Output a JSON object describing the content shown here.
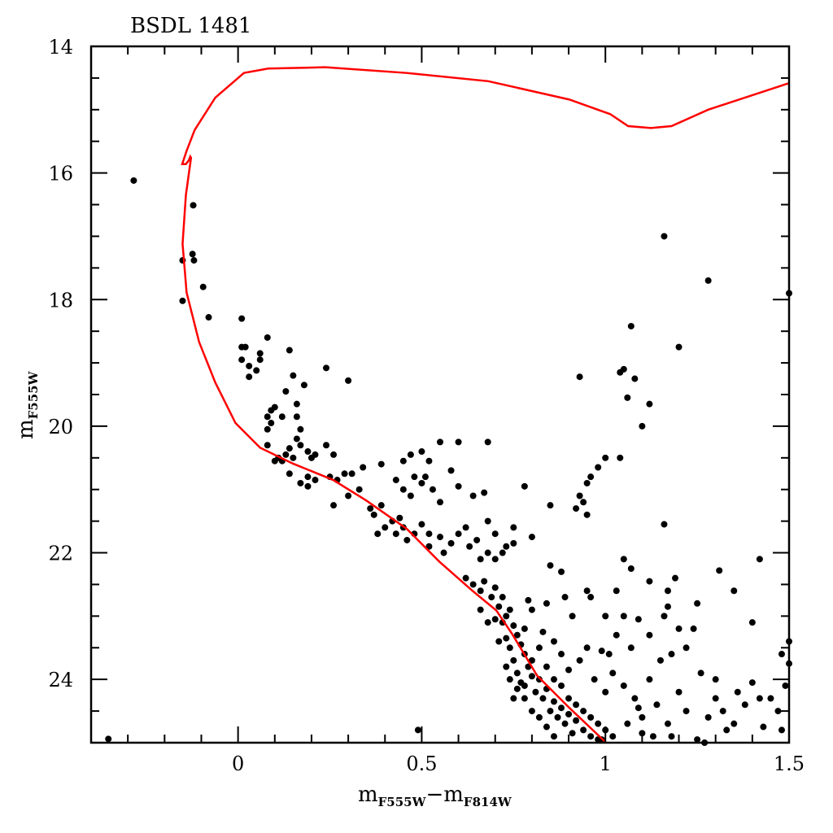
{
  "chart_data": {
    "type": "scatter",
    "title": "BSDL 1481",
    "xlabel": {
      "main": "m",
      "sub1": "F555W",
      "dash": "−",
      "main2": "m",
      "sub2": "F814W"
    },
    "ylabel": {
      "main": "m",
      "sub": "F555W"
    },
    "xlim": [
      -0.4,
      1.5
    ],
    "ylim": [
      25,
      14
    ],
    "y_inverted": true,
    "x_ticks": [
      0,
      0.5,
      1,
      1.5
    ],
    "x_tick_labels": [
      "0",
      "0.5",
      "1",
      "1.5"
    ],
    "y_ticks": [
      14,
      16,
      18,
      20,
      22,
      24
    ],
    "y_tick_labels": [
      "14",
      "16",
      "18",
      "20",
      "22",
      "24"
    ],
    "grid": false,
    "colors": {
      "points": "#000000",
      "isochrone": "#ff0000"
    },
    "isochrone": [
      [
        1.5,
        14.58
      ],
      [
        1.28,
        15.0
      ],
      [
        1.18,
        15.26
      ],
      [
        1.124,
        15.29
      ],
      [
        1.062,
        15.26
      ],
      [
        1.013,
        15.07
      ],
      [
        0.902,
        14.84
      ],
      [
        0.681,
        14.55
      ],
      [
        0.459,
        14.42
      ],
      [
        0.237,
        14.33
      ],
      [
        0.082,
        14.35
      ],
      [
        0.016,
        14.42
      ],
      [
        -0.062,
        14.81
      ],
      [
        -0.118,
        15.32
      ],
      [
        -0.14,
        15.65
      ],
      [
        -0.152,
        15.86
      ],
      [
        -0.142,
        15.86
      ],
      [
        -0.134,
        15.8
      ],
      [
        -0.13,
        15.74
      ],
      [
        -0.128,
        15.76
      ],
      [
        -0.142,
        16.35
      ],
      [
        -0.151,
        17.12
      ],
      [
        -0.14,
        17.89
      ],
      [
        -0.106,
        18.67
      ],
      [
        -0.062,
        19.31
      ],
      [
        -0.007,
        19.95
      ],
      [
        0.06,
        20.34
      ],
      [
        0.149,
        20.59
      ],
      [
        0.259,
        20.85
      ],
      [
        0.348,
        21.17
      ],
      [
        0.459,
        21.62
      ],
      [
        0.548,
        22.14
      ],
      [
        0.636,
        22.59
      ],
      [
        0.703,
        22.91
      ],
      [
        0.747,
        23.29
      ],
      [
        0.814,
        23.94
      ],
      [
        0.902,
        24.45
      ],
      [
        1.002,
        25.0
      ]
    ],
    "points": [
      [
        -0.284,
        16.12
      ],
      [
        -0.353,
        24.94
      ],
      [
        -0.151,
        17.38
      ],
      [
        -0.151,
        18.02
      ],
      [
        -0.124,
        17.28
      ],
      [
        -0.12,
        17.38
      ],
      [
        -0.122,
        16.51
      ],
      [
        -0.095,
        17.8
      ],
      [
        -0.08,
        18.28
      ],
      [
        0.01,
        18.3
      ],
      [
        0.01,
        18.75
      ],
      [
        0.02,
        18.75
      ],
      [
        0.01,
        18.95
      ],
      [
        0.03,
        19.05
      ],
      [
        0.05,
        19.12
      ],
      [
        0.03,
        19.22
      ],
      [
        0.06,
        18.95
      ],
      [
        0.06,
        18.85
      ],
      [
        0.08,
        18.6
      ],
      [
        0.14,
        18.8
      ],
      [
        0.15,
        19.2
      ],
      [
        0.18,
        19.35
      ],
      [
        0.24,
        19.08
      ],
      [
        0.3,
        19.28
      ],
      [
        0.13,
        19.45
      ],
      [
        0.1,
        19.7
      ],
      [
        0.09,
        19.75
      ],
      [
        0.08,
        19.85
      ],
      [
        0.09,
        19.95
      ],
      [
        0.12,
        19.85
      ],
      [
        0.16,
        19.65
      ],
      [
        0.16,
        19.85
      ],
      [
        0.17,
        20.05
      ],
      [
        0.08,
        20.05
      ],
      [
        0.08,
        20.3
      ],
      [
        0.11,
        20.5
      ],
      [
        0.13,
        20.45
      ],
      [
        0.15,
        20.5
      ],
      [
        0.17,
        20.3
      ],
      [
        0.16,
        20.2
      ],
      [
        0.14,
        20.35
      ],
      [
        0.19,
        20.4
      ],
      [
        0.21,
        20.45
      ],
      [
        0.2,
        20.5
      ],
      [
        0.24,
        20.3
      ],
      [
        0.26,
        20.45
      ],
      [
        0.19,
        20.8
      ],
      [
        0.17,
        20.9
      ],
      [
        0.19,
        20.95
      ],
      [
        0.21,
        20.85
      ],
      [
        0.14,
        20.75
      ],
      [
        0.12,
        20.55
      ],
      [
        0.1,
        20.55
      ],
      [
        0.25,
        20.8
      ],
      [
        0.27,
        20.85
      ],
      [
        0.29,
        20.75
      ],
      [
        0.31,
        20.75
      ],
      [
        0.34,
        20.65
      ],
      [
        0.26,
        21.25
      ],
      [
        0.3,
        21.1
      ],
      [
        0.33,
        21.0
      ],
      [
        0.39,
        20.6
      ],
      [
        0.45,
        20.55
      ],
      [
        0.47,
        20.45
      ],
      [
        0.5,
        20.4
      ],
      [
        0.52,
        20.55
      ],
      [
        0.55,
        20.25
      ],
      [
        0.6,
        20.25
      ],
      [
        0.68,
        20.25
      ],
      [
        0.58,
        20.7
      ],
      [
        0.6,
        20.95
      ],
      [
        0.51,
        20.8
      ],
      [
        0.48,
        20.8
      ],
      [
        0.43,
        20.85
      ],
      [
        0.45,
        21.0
      ],
      [
        0.47,
        21.1
      ],
      [
        0.5,
        20.9
      ],
      [
        0.53,
        21.0
      ],
      [
        0.55,
        21.2
      ],
      [
        0.64,
        21.1
      ],
      [
        0.67,
        21.05
      ],
      [
        0.68,
        21.5
      ],
      [
        0.7,
        21.7
      ],
      [
        0.75,
        21.6
      ],
      [
        0.78,
        20.95
      ],
      [
        0.36,
        21.3
      ],
      [
        0.37,
        21.4
      ],
      [
        0.38,
        21.7
      ],
      [
        0.4,
        21.6
      ],
      [
        0.42,
        21.5
      ],
      [
        0.43,
        21.7
      ],
      [
        0.45,
        21.6
      ],
      [
        0.46,
        21.8
      ],
      [
        0.48,
        21.7
      ],
      [
        0.5,
        21.55
      ],
      [
        0.52,
        21.7
      ],
      [
        0.52,
        21.9
      ],
      [
        0.55,
        21.75
      ],
      [
        0.56,
        22.0
      ],
      [
        0.58,
        21.85
      ],
      [
        0.6,
        21.7
      ],
      [
        0.62,
        21.6
      ],
      [
        0.63,
        21.9
      ],
      [
        0.65,
        21.8
      ],
      [
        0.66,
        22.1
      ],
      [
        0.68,
        22.0
      ],
      [
        0.7,
        22.1
      ],
      [
        0.72,
        22.0
      ],
      [
        0.73,
        21.9
      ],
      [
        0.75,
        21.85
      ],
      [
        0.8,
        21.75
      ],
      [
        0.85,
        22.2
      ],
      [
        0.44,
        21.45
      ],
      [
        0.39,
        21.25
      ],
      [
        1.16,
        17.0
      ],
      [
        1.28,
        17.7
      ],
      [
        1.5,
        17.9
      ],
      [
        1.07,
        18.42
      ],
      [
        1.2,
        18.75
      ],
      [
        0.93,
        19.22
      ],
      [
        1.04,
        19.15
      ],
      [
        1.05,
        19.1
      ],
      [
        1.08,
        19.25
      ],
      [
        1.12,
        19.65
      ],
      [
        1.1,
        20.0
      ],
      [
        1.06,
        19.55
      ],
      [
        1.04,
        20.5
      ],
      [
        1.0,
        20.5
      ],
      [
        0.98,
        20.65
      ],
      [
        0.96,
        20.8
      ],
      [
        0.95,
        20.9
      ],
      [
        0.93,
        21.1
      ],
      [
        0.94,
        21.2
      ],
      [
        0.92,
        21.3
      ],
      [
        0.95,
        21.4
      ],
      [
        0.85,
        21.25
      ],
      [
        1.16,
        21.55
      ],
      [
        1.05,
        22.1
      ],
      [
        1.07,
        22.25
      ],
      [
        1.31,
        22.28
      ],
      [
        1.42,
        22.1
      ],
      [
        1.35,
        22.6
      ],
      [
        1.12,
        22.45
      ],
      [
        1.19,
        22.4
      ],
      [
        1.17,
        22.6
      ],
      [
        1.4,
        23.1
      ],
      [
        1.48,
        23.6
      ],
      [
        1.5,
        23.4
      ],
      [
        1.5,
        23.75
      ],
      [
        0.62,
        22.4
      ],
      [
        0.64,
        22.5
      ],
      [
        0.66,
        22.6
      ],
      [
        0.67,
        22.45
      ],
      [
        0.69,
        22.7
      ],
      [
        0.7,
        22.55
      ],
      [
        0.71,
        22.85
      ],
      [
        0.72,
        22.7
      ],
      [
        0.73,
        23.0
      ],
      [
        0.74,
        22.9
      ],
      [
        0.75,
        23.15
      ],
      [
        0.72,
        23.1
      ],
      [
        0.7,
        23.05
      ],
      [
        0.76,
        23.3
      ],
      [
        0.73,
        23.35
      ],
      [
        0.71,
        23.4
      ],
      [
        0.74,
        23.5
      ],
      [
        0.77,
        23.45
      ],
      [
        0.78,
        23.6
      ],
      [
        0.75,
        23.7
      ],
      [
        0.79,
        23.8
      ],
      [
        0.76,
        23.9
      ],
      [
        0.8,
        23.95
      ],
      [
        0.82,
        24.0
      ],
      [
        0.78,
        24.1
      ],
      [
        0.81,
        24.2
      ],
      [
        0.84,
        24.15
      ],
      [
        0.83,
        24.3
      ],
      [
        0.86,
        24.35
      ],
      [
        0.85,
        24.5
      ],
      [
        0.88,
        24.45
      ],
      [
        0.87,
        24.6
      ],
      [
        0.9,
        24.55
      ],
      [
        0.89,
        24.7
      ],
      [
        0.92,
        24.65
      ],
      [
        0.91,
        24.85
      ],
      [
        0.94,
        24.8
      ],
      [
        0.96,
        24.9
      ],
      [
        0.98,
        24.95
      ],
      [
        0.86,
        24.9
      ],
      [
        0.84,
        24.75
      ],
      [
        0.8,
        24.5
      ],
      [
        0.82,
        24.6
      ],
      [
        0.78,
        24.3
      ],
      [
        0.76,
        24.15
      ],
      [
        0.74,
        24.0
      ],
      [
        0.8,
        23.7
      ],
      [
        0.82,
        23.5
      ],
      [
        0.84,
        23.8
      ],
      [
        0.86,
        24.0
      ],
      [
        0.88,
        24.1
      ],
      [
        0.9,
        24.3
      ],
      [
        0.92,
        24.4
      ],
      [
        0.94,
        24.5
      ],
      [
        0.96,
        24.6
      ],
      [
        0.98,
        24.7
      ],
      [
        1.0,
        24.8
      ],
      [
        1.02,
        24.9
      ],
      [
        0.66,
        22.9
      ],
      [
        0.68,
        23.1
      ],
      [
        0.79,
        22.75
      ],
      [
        0.8,
        22.9
      ],
      [
        0.78,
        23.2
      ],
      [
        0.83,
        23.25
      ],
      [
        0.84,
        22.8
      ],
      [
        0.89,
        22.7
      ],
      [
        0.91,
        23.0
      ],
      [
        0.86,
        23.4
      ],
      [
        0.88,
        23.6
      ],
      [
        0.9,
        23.85
      ],
      [
        0.93,
        23.7
      ],
      [
        0.95,
        23.5
      ],
      [
        0.97,
        24.0
      ],
      [
        1.0,
        24.2
      ],
      [
        0.99,
        23.55
      ],
      [
        1.03,
        22.6
      ],
      [
        0.96,
        22.7
      ],
      [
        1.03,
        23.3
      ],
      [
        1.05,
        23.0
      ],
      [
        1.07,
        23.5
      ],
      [
        1.02,
        23.9
      ],
      [
        1.05,
        24.1
      ],
      [
        1.08,
        24.3
      ],
      [
        1.1,
        24.6
      ],
      [
        1.12,
        24.0
      ],
      [
        1.15,
        23.7
      ],
      [
        1.14,
        24.4
      ],
      [
        1.17,
        24.7
      ],
      [
        1.2,
        24.2
      ],
      [
        1.22,
        24.5
      ],
      [
        1.24,
        23.2
      ],
      [
        1.26,
        23.9
      ],
      [
        1.28,
        24.6
      ],
      [
        1.3,
        24.3
      ],
      [
        1.33,
        24.8
      ],
      [
        1.35,
        24.7
      ],
      [
        1.38,
        24.4
      ],
      [
        1.4,
        24.05
      ],
      [
        1.42,
        24.3
      ],
      [
        1.45,
        24.3
      ],
      [
        1.47,
        24.5
      ],
      [
        1.49,
        24.1
      ],
      [
        1.48,
        24.8
      ],
      [
        1.43,
        24.75
      ],
      [
        1.1,
        24.85
      ],
      [
        1.13,
        24.9
      ],
      [
        1.18,
        24.9
      ],
      [
        1.25,
        24.95
      ],
      [
        1.06,
        24.7
      ],
      [
        0.99,
        24.95
      ],
      [
        1.16,
        23.0
      ],
      [
        1.2,
        23.2
      ],
      [
        1.22,
        23.5
      ],
      [
        1.18,
        23.6
      ],
      [
        1.12,
        23.3
      ],
      [
        1.09,
        23.05
      ],
      [
        1.25,
        22.8
      ],
      [
        1.17,
        22.85
      ],
      [
        1.0,
        23.0
      ],
      [
        1.01,
        23.6
      ],
      [
        0.95,
        22.6
      ],
      [
        0.88,
        22.3
      ],
      [
        1.3,
        24.0
      ],
      [
        1.36,
        24.2
      ],
      [
        1.32,
        24.5
      ],
      [
        0.49,
        24.8
      ],
      [
        1.09,
        24.45
      ],
      [
        1.27,
        25.0
      ],
      [
        0.75,
        24.3
      ],
      [
        0.73,
        23.8
      ],
      [
        0.77,
        24.05
      ]
    ]
  }
}
